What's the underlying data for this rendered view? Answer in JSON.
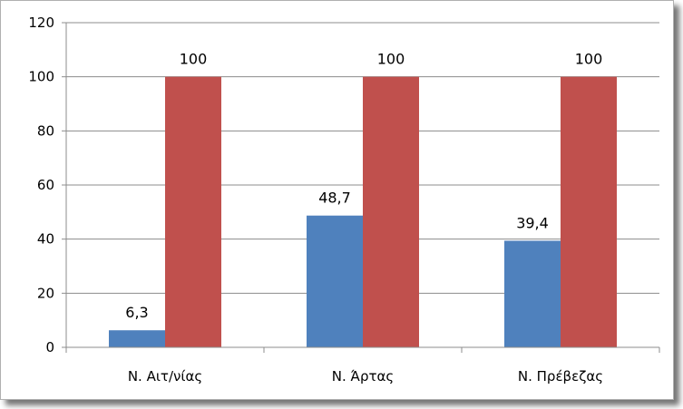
{
  "chart_data": {
    "type": "bar",
    "categories": [
      "Ν. Αιτ/νίας",
      "Ν. Άρτας",
      "Ν. Πρέβεζας"
    ],
    "series": [
      {
        "values": [
          6.3,
          48.7,
          39.4
        ],
        "labels": [
          "6,3",
          "48,7",
          "39,4"
        ],
        "color": "#4F81BD"
      },
      {
        "values": [
          100,
          100,
          100
        ],
        "labels": [
          "100",
          "100",
          "100"
        ],
        "color": "#C0504D"
      }
    ],
    "ylim": [
      0,
      120
    ],
    "yticks": [
      "0",
      "20",
      "40",
      "60",
      "80",
      "100",
      "120"
    ],
    "grid": true,
    "title": "",
    "xlabel": "",
    "ylabel": ""
  }
}
